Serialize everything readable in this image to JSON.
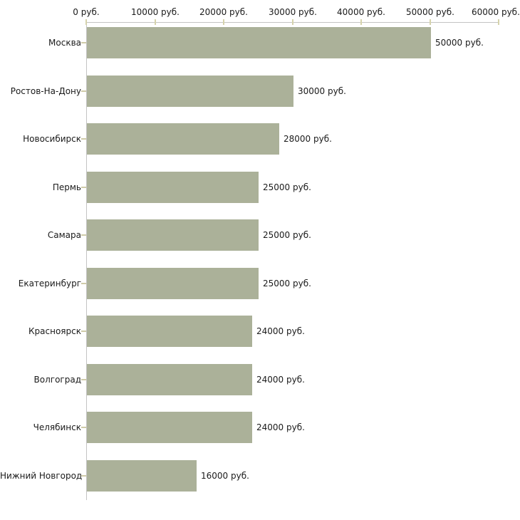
{
  "chart_data": {
    "type": "bar",
    "orientation": "horizontal",
    "title": "",
    "xlabel": "",
    "ylabel": "",
    "unit": "руб.",
    "categories": [
      "Москва",
      "Ростов-На-Дону",
      "Новосибирск",
      "Пермь",
      "Самара",
      "Екатеринбург",
      "Красноярск",
      "Волгоград",
      "Челябинск",
      "Нижний Новгород"
    ],
    "values": [
      50000,
      30000,
      28000,
      25000,
      25000,
      25000,
      24000,
      24000,
      24000,
      16000
    ],
    "value_labels": [
      "50000 руб.",
      "30000 руб.",
      "28000 руб.",
      "25000 руб.",
      "25000 руб.",
      "25000 руб.",
      "24000 руб.",
      "24000 руб.",
      "24000 руб.",
      "16000 руб."
    ],
    "x_axis": {
      "position": "top",
      "range": [
        0,
        60000
      ],
      "ticks": [
        0,
        10000,
        20000,
        30000,
        40000,
        50000,
        60000
      ],
      "tick_labels": [
        "0 руб.",
        "10000 руб.",
        "20000 руб.",
        "30000 руб.",
        "40000 руб.",
        "50000 руб.",
        "60000 руб."
      ]
    },
    "grid": false,
    "legend": false,
    "colors": {
      "bar": "#abb199",
      "axis_line": "#c3c3c3",
      "axis_tick": "#d6d3ac",
      "category_tick": "#cfcba8",
      "text": "#1a1a1a",
      "background": "#ffffff"
    }
  }
}
